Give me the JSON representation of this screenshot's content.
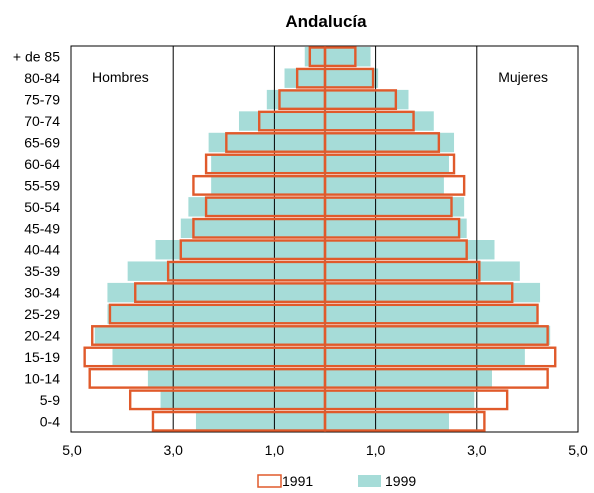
{
  "chart_data": {
    "type": "bar",
    "subtype": "population-pyramid",
    "title": "Andalucía",
    "xlabel": "",
    "ylabel": "",
    "left_label": "Hombres",
    "right_label": "Mujeres",
    "xlim": [
      -5,
      5
    ],
    "x_tick_labels": [
      "5,0",
      "3,0",
      "1,0",
      "1,0",
      "3,0",
      "5,0"
    ],
    "categories": [
      "0-4",
      "5-9",
      "10-14",
      "15-19",
      "20-24",
      "25-29",
      "30-34",
      "35-39",
      "40-44",
      "45-49",
      "50-54",
      "55-59",
      "60-64",
      "65-69",
      "70-74",
      "75-79",
      "80-84",
      "+ de 85"
    ],
    "series": [
      {
        "name": "1991",
        "style": "outline",
        "color": "#e05a2b",
        "men": [
          3.4,
          3.85,
          4.65,
          4.75,
          4.6,
          4.25,
          3.75,
          3.1,
          2.85,
          2.6,
          2.35,
          2.6,
          2.35,
          1.95,
          1.3,
          0.9,
          0.55,
          0.3
        ],
        "women": [
          3.15,
          3.6,
          4.4,
          4.55,
          4.4,
          4.2,
          3.7,
          3.05,
          2.8,
          2.65,
          2.5,
          2.75,
          2.55,
          2.25,
          1.75,
          1.4,
          0.95,
          0.6
        ]
      },
      {
        "name": "1999",
        "style": "fill",
        "color": "#a6dcd8",
        "men": [
          2.55,
          3.25,
          3.5,
          4.2,
          4.55,
          4.3,
          4.3,
          3.9,
          3.35,
          2.85,
          2.7,
          2.25,
          2.25,
          2.3,
          1.7,
          1.15,
          0.8,
          0.4
        ],
        "women": [
          2.45,
          2.95,
          3.3,
          3.95,
          4.45,
          4.2,
          4.25,
          3.85,
          3.35,
          2.8,
          2.75,
          2.35,
          2.45,
          2.55,
          2.15,
          1.65,
          1.05,
          0.9
        ]
      }
    ],
    "grid": "vertical-at-ticks",
    "legend_position": "bottom-center"
  }
}
